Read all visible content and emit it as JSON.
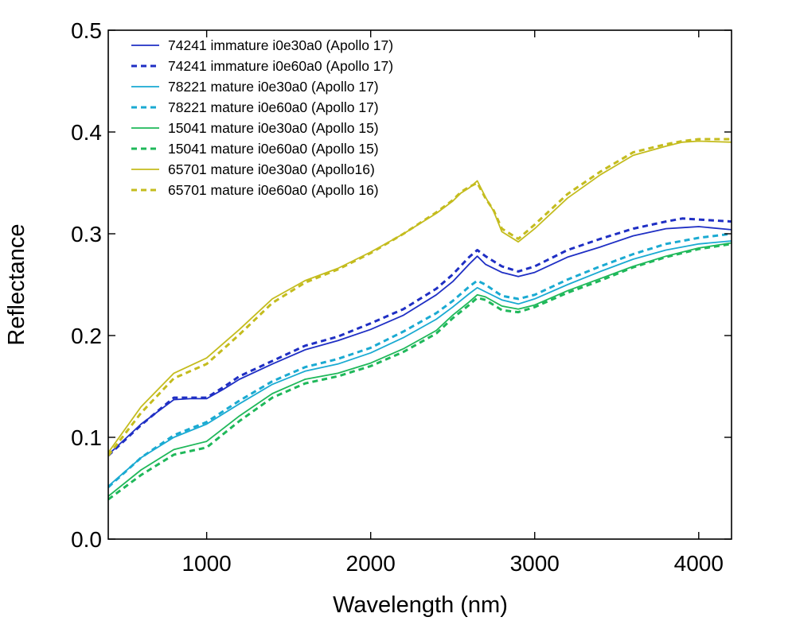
{
  "chart_data": {
    "type": "line",
    "title": "",
    "xlabel": "Wavelength (nm)",
    "ylabel": "Reflectance",
    "xlim": [
      400,
      4200
    ],
    "ylim": [
      0.0,
      0.5
    ],
    "x_ticks": [
      1000,
      2000,
      3000,
      4000
    ],
    "x_tick_labels": [
      "1000",
      "2000",
      "3000",
      "4000"
    ],
    "y_ticks": [
      0.0,
      0.1,
      0.2,
      0.3,
      0.4,
      0.5
    ],
    "y_tick_labels": [
      "0.0",
      "0.1",
      "0.2",
      "0.3",
      "0.4",
      "0.5"
    ],
    "grid": false,
    "legend_position": "top-left",
    "series": [
      {
        "name": "74241 immature i0e30a0 (Apollo 17)",
        "color": "#1f2fc4",
        "dash": "solid",
        "x": [
          400,
          600,
          800,
          900,
          1000,
          1100,
          1200,
          1400,
          1600,
          1800,
          2000,
          2200,
          2400,
          2500,
          2600,
          2650,
          2700,
          2800,
          2900,
          3000,
          3200,
          3400,
          3600,
          3800,
          3900,
          4000,
          4200
        ],
        "y": [
          0.083,
          0.113,
          0.137,
          0.138,
          0.138,
          0.147,
          0.157,
          0.172,
          0.186,
          0.195,
          0.206,
          0.22,
          0.24,
          0.253,
          0.27,
          0.278,
          0.27,
          0.262,
          0.258,
          0.262,
          0.277,
          0.287,
          0.298,
          0.305,
          0.306,
          0.307,
          0.304
        ]
      },
      {
        "name": "74241 immature i0e60a0 (Apollo 17)",
        "color": "#1f2fc4",
        "dash": "dashed",
        "x": [
          400,
          600,
          800,
          900,
          1000,
          1100,
          1200,
          1400,
          1600,
          1800,
          2000,
          2200,
          2400,
          2500,
          2600,
          2650,
          2700,
          2800,
          2900,
          3000,
          3200,
          3400,
          3600,
          3800,
          3900,
          4000,
          4200
        ],
        "y": [
          0.082,
          0.112,
          0.139,
          0.139,
          0.139,
          0.149,
          0.16,
          0.175,
          0.19,
          0.199,
          0.212,
          0.226,
          0.246,
          0.26,
          0.277,
          0.284,
          0.278,
          0.268,
          0.263,
          0.268,
          0.284,
          0.295,
          0.305,
          0.312,
          0.315,
          0.314,
          0.312
        ]
      },
      {
        "name": "78221 mature i0e30a0 (Apollo 17)",
        "color": "#1aaad2",
        "dash": "solid",
        "x": [
          400,
          600,
          800,
          1000,
          1200,
          1400,
          1600,
          1800,
          2000,
          2200,
          2400,
          2500,
          2600,
          2650,
          2700,
          2800,
          2900,
          3000,
          3200,
          3400,
          3600,
          3800,
          4000,
          4200
        ],
        "y": [
          0.052,
          0.08,
          0.1,
          0.113,
          0.133,
          0.152,
          0.165,
          0.172,
          0.183,
          0.198,
          0.216,
          0.228,
          0.241,
          0.247,
          0.243,
          0.235,
          0.231,
          0.236,
          0.25,
          0.263,
          0.275,
          0.284,
          0.29,
          0.293
        ]
      },
      {
        "name": "78221 mature i0e60a0 (Apollo 17)",
        "color": "#1aaad2",
        "dash": "dashed",
        "x": [
          400,
          600,
          800,
          1000,
          1200,
          1400,
          1600,
          1800,
          2000,
          2200,
          2400,
          2500,
          2600,
          2650,
          2700,
          2800,
          2900,
          3000,
          3200,
          3400,
          3600,
          3800,
          4000,
          4200
        ],
        "y": [
          0.051,
          0.08,
          0.102,
          0.115,
          0.136,
          0.155,
          0.169,
          0.177,
          0.188,
          0.204,
          0.222,
          0.234,
          0.248,
          0.254,
          0.25,
          0.239,
          0.236,
          0.24,
          0.255,
          0.268,
          0.28,
          0.29,
          0.296,
          0.3
        ]
      },
      {
        "name": "15041 mature i0e30a0 (Apollo 15)",
        "color": "#1fb85a",
        "dash": "solid",
        "x": [
          400,
          600,
          800,
          1000,
          1200,
          1400,
          1600,
          1800,
          2000,
          2200,
          2400,
          2500,
          2600,
          2650,
          2700,
          2800,
          2900,
          3000,
          3200,
          3400,
          3600,
          3800,
          4000,
          4200
        ],
        "y": [
          0.042,
          0.068,
          0.088,
          0.096,
          0.121,
          0.143,
          0.157,
          0.163,
          0.173,
          0.187,
          0.205,
          0.22,
          0.233,
          0.24,
          0.238,
          0.229,
          0.226,
          0.23,
          0.244,
          0.256,
          0.268,
          0.278,
          0.286,
          0.291
        ]
      },
      {
        "name": "15041 mature i0e60a0 (Apollo 15)",
        "color": "#1fb85a",
        "dash": "dashed",
        "x": [
          400,
          600,
          800,
          1000,
          1200,
          1400,
          1600,
          1800,
          2000,
          2200,
          2400,
          2500,
          2600,
          2650,
          2700,
          2800,
          2900,
          3000,
          3200,
          3400,
          3600,
          3800,
          4000,
          4200
        ],
        "y": [
          0.039,
          0.063,
          0.083,
          0.09,
          0.116,
          0.139,
          0.153,
          0.16,
          0.17,
          0.184,
          0.202,
          0.217,
          0.23,
          0.237,
          0.235,
          0.225,
          0.223,
          0.228,
          0.242,
          0.254,
          0.267,
          0.277,
          0.285,
          0.29
        ]
      },
      {
        "name": "65701 mature i0e30a0 (Apollo16)",
        "color": "#c4bc1e",
        "dash": "solid",
        "x": [
          400,
          600,
          800,
          1000,
          1200,
          1400,
          1600,
          1800,
          2000,
          2200,
          2400,
          2500,
          2550,
          2600,
          2650,
          2700,
          2750,
          2800,
          2900,
          3000,
          3200,
          3400,
          3600,
          3800,
          3900,
          4000,
          4200
        ],
        "y": [
          0.085,
          0.13,
          0.163,
          0.178,
          0.206,
          0.236,
          0.254,
          0.266,
          0.282,
          0.3,
          0.32,
          0.332,
          0.34,
          0.345,
          0.352,
          0.336,
          0.322,
          0.302,
          0.292,
          0.305,
          0.335,
          0.358,
          0.377,
          0.386,
          0.39,
          0.391,
          0.39
        ]
      },
      {
        "name": "65701 mature i0e60a0 (Apollo 16)",
        "color": "#c4bc1e",
        "dash": "dashed",
        "x": [
          400,
          600,
          800,
          1000,
          1200,
          1400,
          1600,
          1800,
          2000,
          2200,
          2400,
          2500,
          2550,
          2600,
          2650,
          2700,
          2750,
          2800,
          2900,
          3000,
          3200,
          3400,
          3600,
          3800,
          3900,
          4000,
          4200
        ],
        "y": [
          0.082,
          0.124,
          0.158,
          0.172,
          0.201,
          0.232,
          0.252,
          0.265,
          0.281,
          0.3,
          0.321,
          0.333,
          0.341,
          0.346,
          0.35,
          0.335,
          0.323,
          0.305,
          0.295,
          0.309,
          0.339,
          0.361,
          0.38,
          0.388,
          0.391,
          0.393,
          0.393
        ]
      }
    ]
  }
}
